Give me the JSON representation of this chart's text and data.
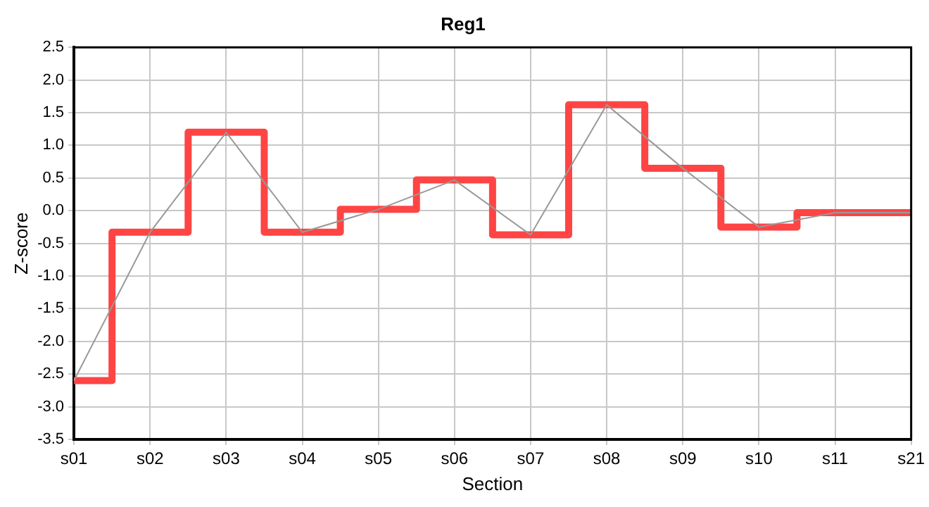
{
  "chart_data": {
    "type": "step",
    "title": "Reg1",
    "xlabel": "Section",
    "ylabel": "Z-score",
    "categories": [
      "s01",
      "s02",
      "s03",
      "s04",
      "s05",
      "s06",
      "s07",
      "s08",
      "s09",
      "s10",
      "s11",
      "s21"
    ],
    "series": [
      {
        "color": "#ff4444",
        "values": [
          -2.6,
          -0.33,
          1.2,
          -0.33,
          0.02,
          0.47,
          -0.37,
          1.62,
          0.65,
          -0.25,
          -0.03,
          -0.03
        ]
      },
      {
        "type": "line",
        "color": "#999999",
        "values": [
          -2.6,
          -0.33,
          1.2,
          -0.33,
          0.02,
          0.47,
          -0.37,
          1.62,
          0.65,
          -0.25,
          -0.03,
          -0.03
        ]
      }
    ],
    "ylim": [
      -3.5,
      2.5
    ],
    "yticks": [
      {
        "value": -3.5,
        "label": "-3.5"
      },
      {
        "value": -3,
        "label": "-3.0"
      },
      {
        "value": -2.5,
        "label": "-2.5"
      },
      {
        "value": -2,
        "label": "-2.0"
      },
      {
        "value": -1.5,
        "label": "-1.5"
      },
      {
        "value": -1,
        "label": "-1.0"
      },
      {
        "value": -0.5,
        "label": "-0.5"
      },
      {
        "value": 0,
        "label": "0.0"
      },
      {
        "value": 0.5,
        "label": "0.5"
      },
      {
        "value": 1,
        "label": "1.0"
      },
      {
        "value": 1.5,
        "label": "1.5"
      },
      {
        "value": 2,
        "label": "2.0"
      },
      {
        "value": 2.5,
        "label": "2.5"
      }
    ],
    "grid": true,
    "legend": false,
    "marker": "none"
  }
}
